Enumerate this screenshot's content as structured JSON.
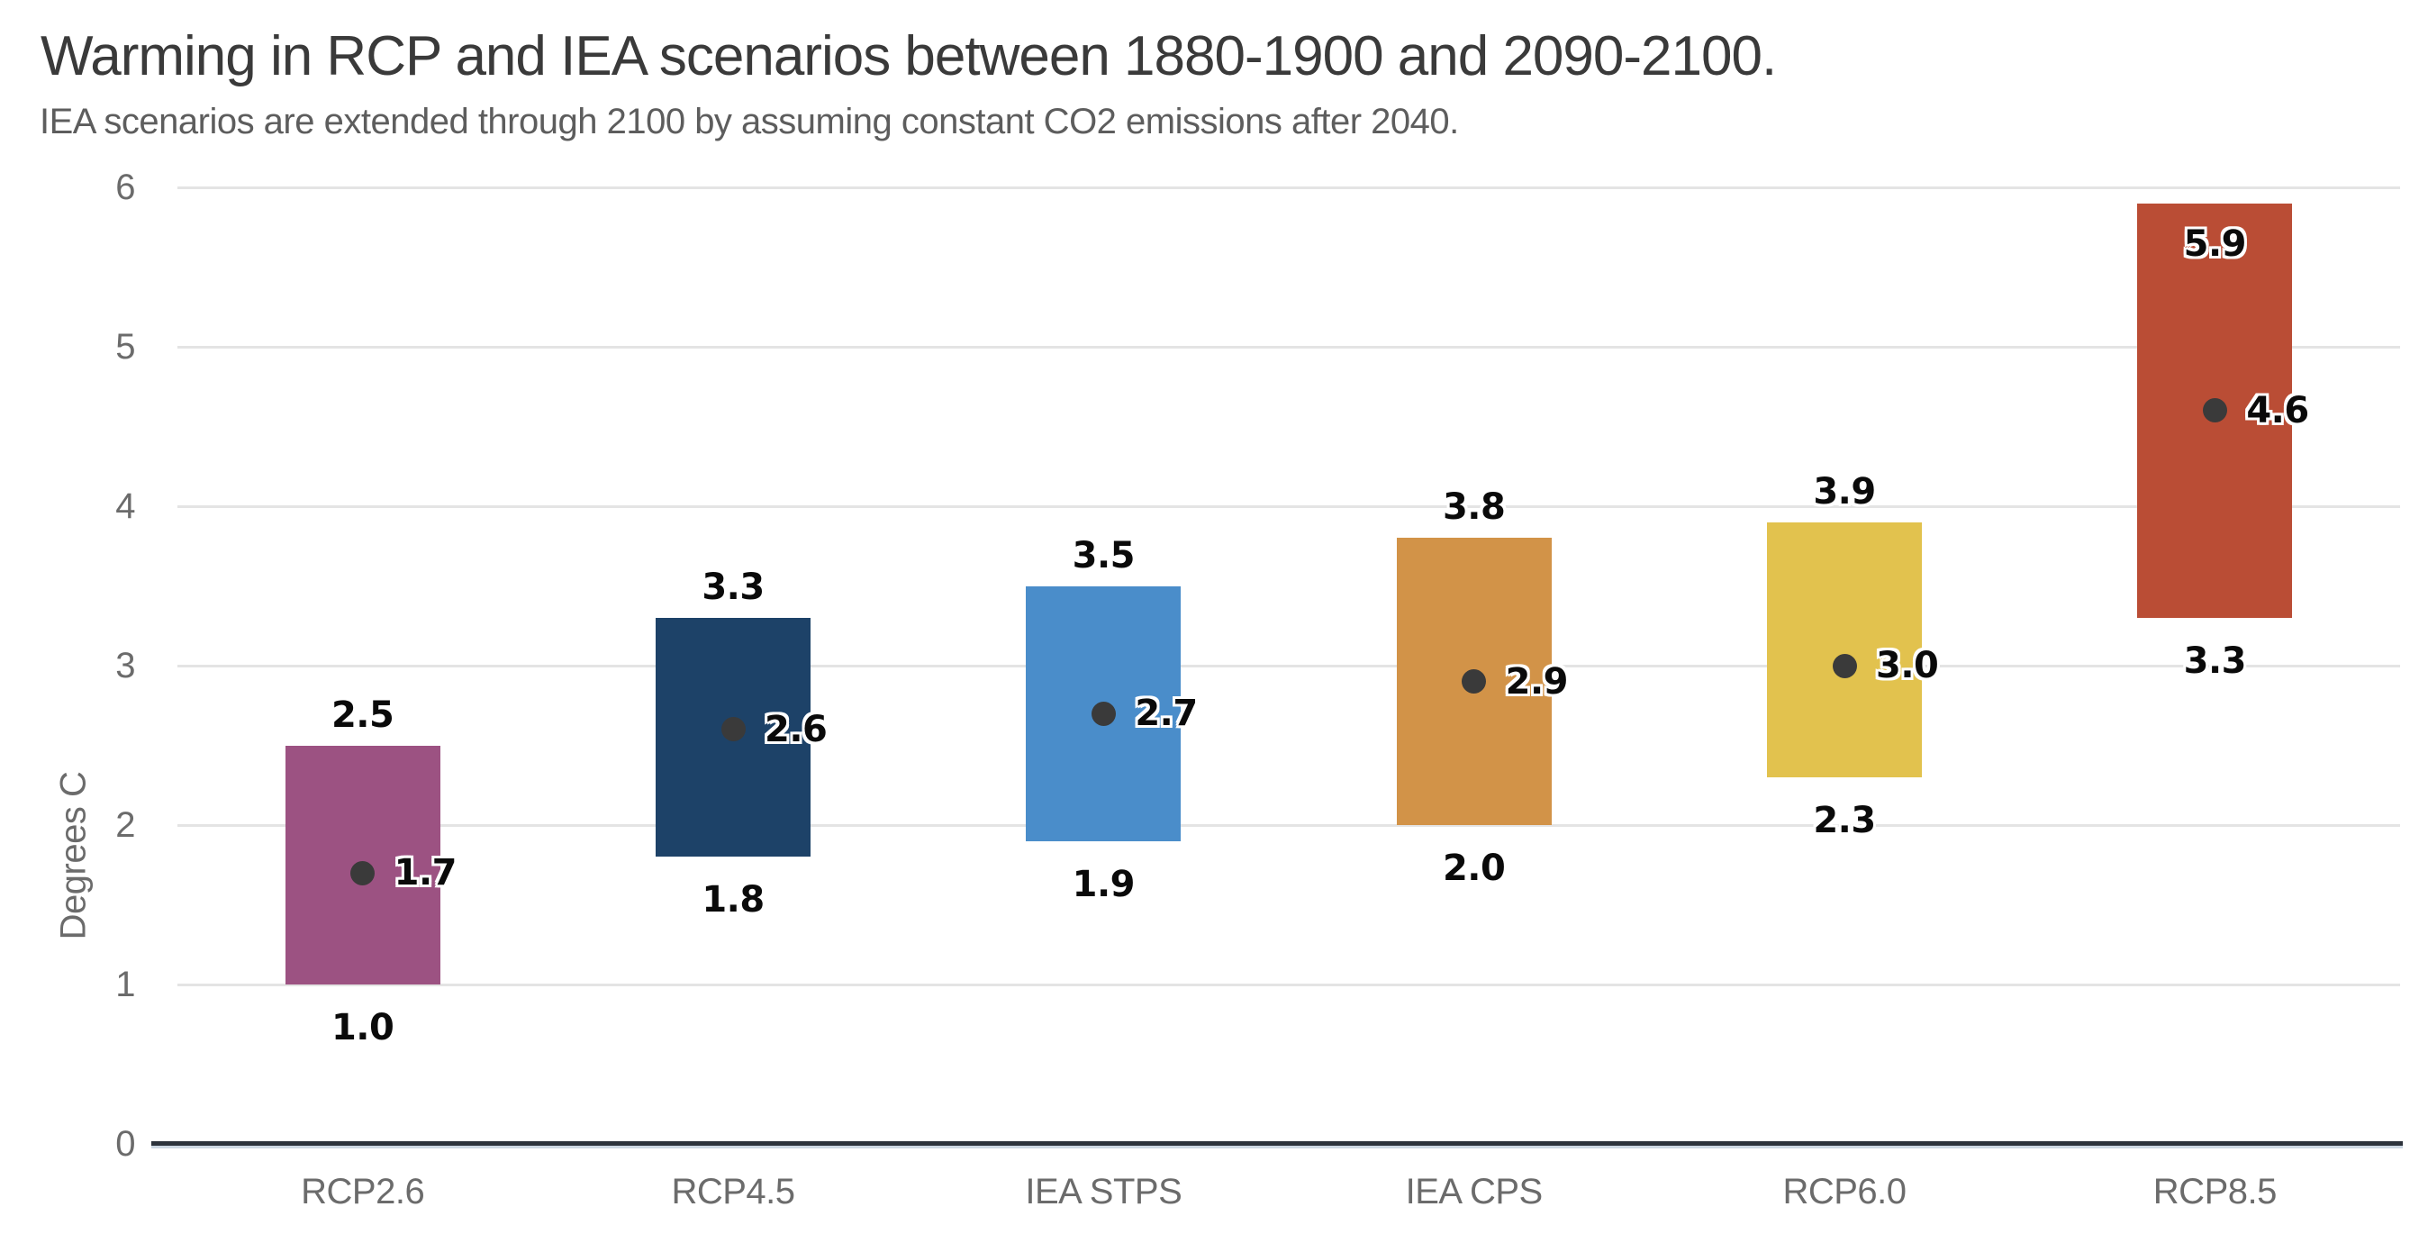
{
  "title": "Warming in RCP and IEA scenarios between 1880-1900 and 2090-2100.",
  "subtitle": "IEA scenarios are extended through 2100 by assuming constant CO2 emissions after 2040.",
  "chart_data": {
    "type": "bar",
    "subtype": "floating-range-bars-with-midpoint-dot",
    "title": "Warming in RCP and IEA scenarios between 1880-1900 and 2090-2100.",
    "subtitle": "IEA scenarios are extended through 2100 by assuming constant CO2 emissions after 2040.",
    "xlabel": "",
    "ylabel": "Degrees C",
    "ylim": [
      0,
      6
    ],
    "yticks": [
      0,
      1,
      2,
      3,
      4,
      5,
      6
    ],
    "grid": true,
    "legend": "none",
    "categories": [
      "RCP2.6",
      "RCP4.5",
      "IEA STPS",
      "IEA CPS",
      "RCP6.0",
      "RCP8.5"
    ],
    "series": [
      {
        "name": "RCP2.6",
        "min": 1.0,
        "max": 2.5,
        "mid": 1.7,
        "color": "#9c5282",
        "max_label_position": "above"
      },
      {
        "name": "RCP4.5",
        "min": 1.8,
        "max": 3.3,
        "mid": 2.6,
        "color": "#1d4268",
        "max_label_position": "above"
      },
      {
        "name": "IEA STPS",
        "min": 1.9,
        "max": 3.5,
        "mid": 2.7,
        "color": "#4a8dca",
        "max_label_position": "above"
      },
      {
        "name": "IEA CPS",
        "min": 2.0,
        "max": 3.8,
        "mid": 2.9,
        "color": "#d29348",
        "max_label_position": "above"
      },
      {
        "name": "RCP6.0",
        "min": 2.3,
        "max": 3.9,
        "mid": 3.0,
        "color": "#e2c24e",
        "max_label_position": "above"
      },
      {
        "name": "RCP8.5",
        "min": 3.3,
        "max": 5.9,
        "mid": 4.6,
        "color": "#ba4d35",
        "max_label_position": "inside"
      }
    ],
    "midpoint_marker": {
      "shape": "circle",
      "color": "#3a3a3a"
    },
    "value_label_format": "0.0"
  },
  "colors": {
    "title_text": "#3a3a3a",
    "subtitle_text": "#5d5d5d",
    "axis_text": "#6b6b6b",
    "value_text": "#0a0a0a",
    "gridline": "#e4e4e4",
    "baseline_dark": "#2d333c",
    "baseline_light": "#ccd7e3",
    "background": "#ffffff"
  }
}
